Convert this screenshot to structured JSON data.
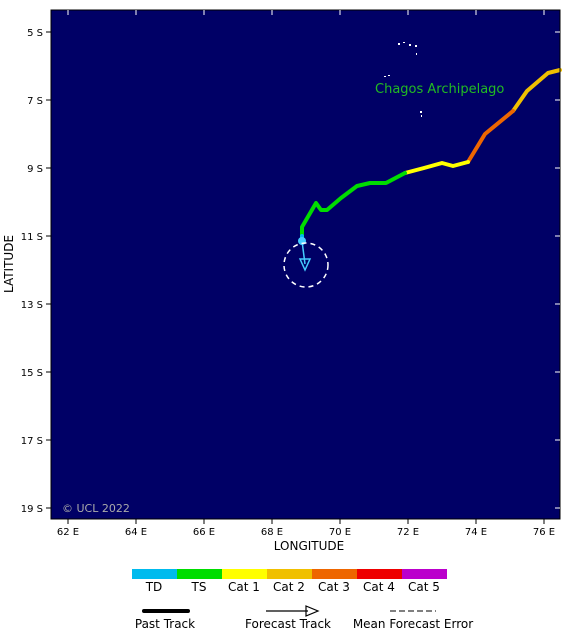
{
  "map": {
    "place_label": "Chagos Archipelago",
    "copyright": "© UCL 2022",
    "ocean_color": "#000066",
    "place_label_color": "#22bb22"
  },
  "axes": {
    "xlabel": "LONGITUDE",
    "ylabel": "LATITUDE",
    "lon_ticks": [
      "62 E",
      "64 E",
      "66 E",
      "68 E",
      "70 E",
      "72 E",
      "74 E",
      "76 E"
    ],
    "lat_ticks": [
      "5 S",
      "7 S",
      "9 S",
      "11 S",
      "13 S",
      "15 S",
      "17 S",
      "19 S"
    ]
  },
  "legend": {
    "categories": [
      {
        "label": "TD",
        "color": "#00bbee"
      },
      {
        "label": "TS",
        "color": "#00dd00"
      },
      {
        "label": "Cat 1",
        "color": "#ffff00"
      },
      {
        "label": "Cat 2",
        "color": "#f0c000"
      },
      {
        "label": "Cat 3",
        "color": "#ee6600"
      },
      {
        "label": "Cat 4",
        "color": "#ee0000"
      },
      {
        "label": "Cat 5",
        "color": "#bb00cc"
      }
    ],
    "past_track": "Past Track",
    "forecast_track": "Forecast Track",
    "mean_error": "Mean Forecast Error"
  }
}
